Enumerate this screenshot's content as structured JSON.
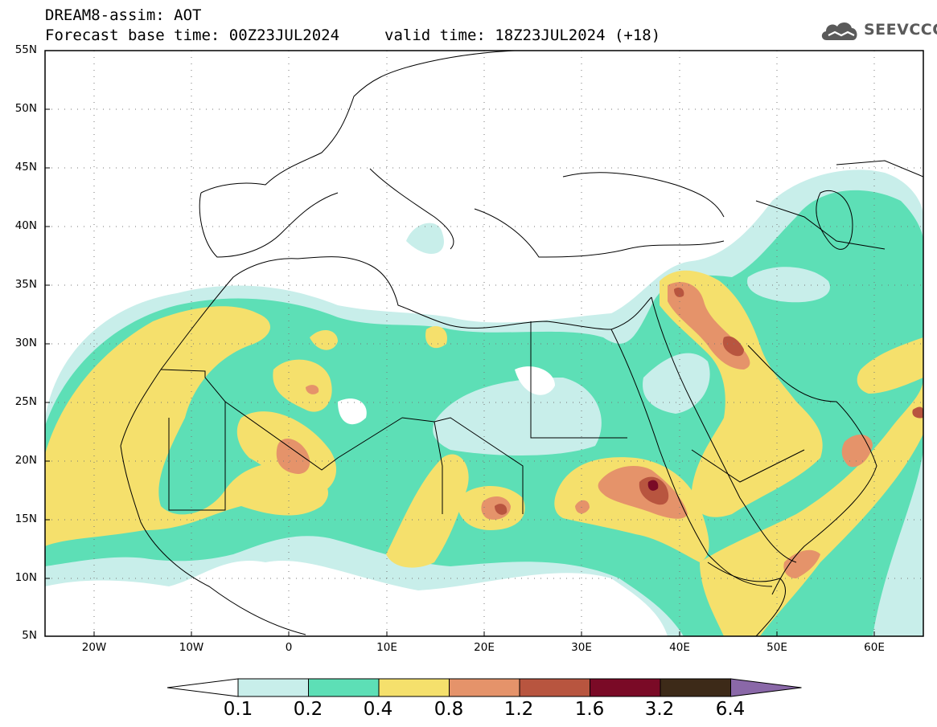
{
  "header": {
    "model_line": "DREAM8-assim: AOT",
    "base_time": "Forecast base time: 00Z23JUL2024",
    "valid_time": "valid time: 18Z23JUL2024 (+18)",
    "logo_text": "SEEVCCC"
  },
  "axes": {
    "lat_labels": [
      "55N",
      "50N",
      "45N",
      "40N",
      "35N",
      "30N",
      "25N",
      "20N",
      "15N",
      "10N",
      "5N"
    ],
    "lon_labels": [
      "20W",
      "10W",
      "0",
      "10E",
      "20E",
      "30E",
      "40E",
      "50E",
      "60E"
    ]
  },
  "colorbar": {
    "labels": [
      "0.1",
      "0.2",
      "0.4",
      "0.8",
      "1.2",
      "1.6",
      "3.2",
      "6.4"
    ],
    "colors": [
      "#ffffff",
      "#c8eeea",
      "#5ddfb6",
      "#f5e06c",
      "#e5936a",
      "#b8553f",
      "#7a0a26",
      "#3d2a18",
      "#8a68a8"
    ]
  },
  "colors": {
    "aot_0_1": "#c8eeea",
    "aot_0_2": "#5ddfb6",
    "aot_0_4": "#f5e06c",
    "aot_0_8": "#e5936a",
    "aot_1_2": "#b8553f",
    "aot_1_6": "#7a0a26"
  }
}
